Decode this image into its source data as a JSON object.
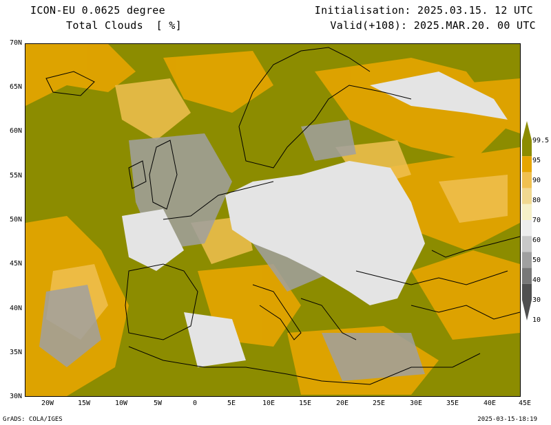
{
  "header": {
    "model": "ICON-EU 0.0625 degree",
    "variable": "Total Clouds  [ %]",
    "init": "Initialisation: 2025.03.15. 12 UTC",
    "valid": "Valid(+108): 2025.MAR.20. 00 UTC"
  },
  "map": {
    "lat_labels": [
      "70N",
      "65N",
      "60N",
      "55N",
      "50N",
      "45N",
      "40N",
      "35N",
      "30N"
    ],
    "lon_labels": [
      "20W",
      "15W",
      "10W",
      "5W",
      "0",
      "5E",
      "10E",
      "15E",
      "20E",
      "25E",
      "30E",
      "35E",
      "40E",
      "45E"
    ],
    "lat_range": [
      30,
      70
    ],
    "lon_range": [
      -23,
      45
    ]
  },
  "legend": {
    "levels": [
      "99.5",
      "95",
      "90",
      "80",
      "70",
      "60",
      "50",
      "40",
      "30",
      "10"
    ],
    "colors": [
      "#8c8c00",
      "#e6a500",
      "#f0c050",
      "#f0d890",
      "#f5f0c8",
      "#ededed",
      "#c8c8c8",
      "#a0a0a0",
      "#787878",
      "#505050"
    ]
  },
  "footer": {
    "left": "GrADS: COLA/IGES",
    "right": "2025-03-15-18:19"
  }
}
